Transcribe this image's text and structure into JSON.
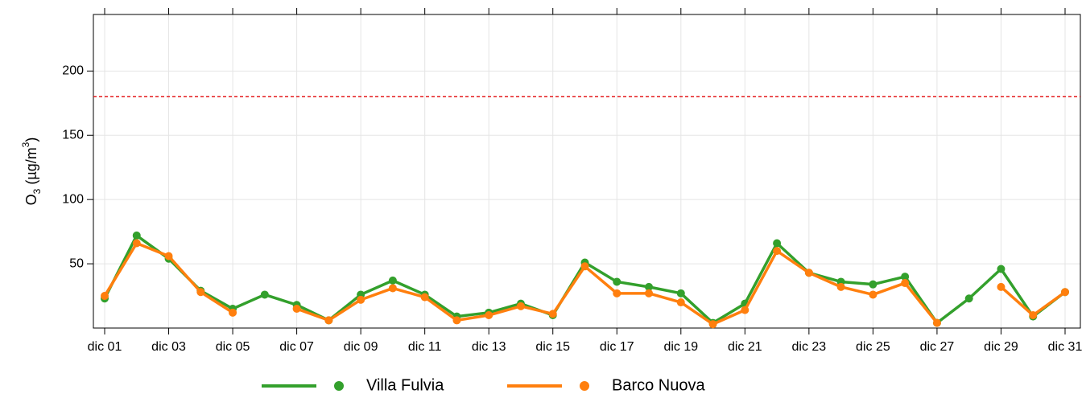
{
  "chart_data": {
    "type": "line",
    "ylabel": [
      "O",
      "3",
      " (µg/m",
      "3",
      ")"
    ],
    "categories": [
      "dic 01",
      null,
      "dic 03",
      null,
      "dic 05",
      null,
      "dic 07",
      null,
      "dic 09",
      null,
      "dic 11",
      null,
      "dic 13",
      null,
      "dic 15",
      null,
      "dic 17",
      null,
      "dic 19",
      null,
      "dic 21",
      null,
      "dic 23",
      null,
      "dic 25",
      null,
      "dic 27",
      null,
      "dic 29",
      null,
      "dic 31"
    ],
    "series": [
      {
        "name": "Villa Fulvia",
        "color": "#33a02c",
        "values": [
          23,
          72,
          54,
          29,
          15,
          26,
          18,
          6,
          26,
          37,
          26,
          9,
          12,
          19,
          10,
          51,
          36,
          32,
          27,
          4,
          19,
          66,
          43,
          36,
          34,
          40,
          4,
          23,
          46,
          9,
          28
        ]
      },
      {
        "name": "Barco Nuova",
        "color": "#ff7f0e",
        "values": [
          25,
          66,
          56,
          28,
          12,
          null,
          15,
          6,
          22,
          31,
          24,
          6,
          10,
          17,
          11,
          48,
          27,
          27,
          20,
          3,
          14,
          60,
          43,
          32,
          26,
          35,
          4,
          null,
          32,
          10,
          28
        ]
      }
    ],
    "threshold": {
      "value": 180,
      "color": "#e41a1c"
    },
    "ylim": [
      0,
      244
    ],
    "yticks": [
      50,
      100,
      150,
      200
    ],
    "grid": true,
    "legend": "bottom"
  }
}
